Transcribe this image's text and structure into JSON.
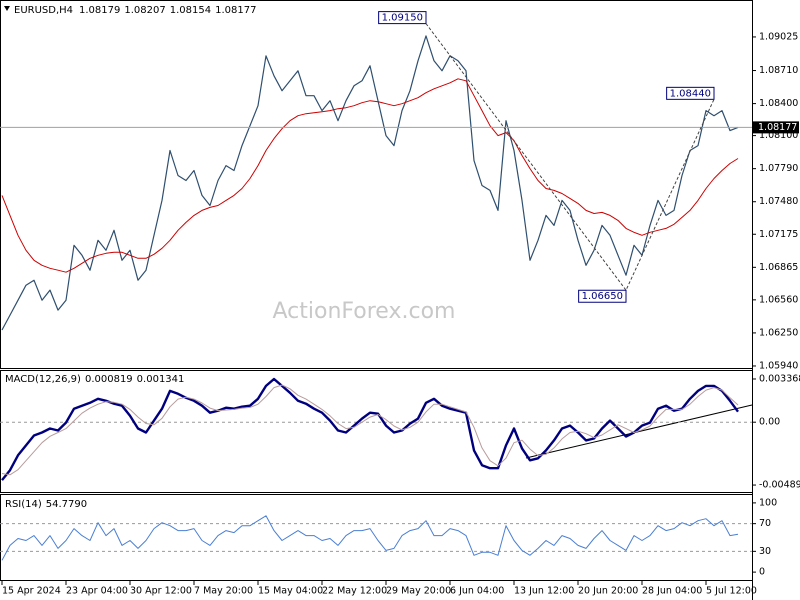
{
  "chart_data": [
    {
      "type": "line",
      "title": "EURUSD,H4",
      "ohlc": [
        1.08179,
        1.08207,
        1.08154,
        1.08177
      ],
      "watermark": "ActionForex.com",
      "ylim": [
        1.05921,
        1.09362
      ],
      "yticks": [
        1.09025,
        {
          "value": 1.0871,
          "label": "1.08710"
        },
        {
          "value": 1.084,
          "label": "1.08400"
        },
        {
          "value": 1.081,
          "label": "1.08100"
        },
        {
          "value": 1.0779,
          "label": "1.07790"
        },
        {
          "value": 1.0748,
          "label": "1.07480"
        },
        1.07175,
        1.06865,
        {
          "value": 1.0656,
          "label": "1.06560"
        },
        {
          "value": 1.0625,
          "label": "1.06250"
        },
        {
          "value": 1.0594,
          "label": "1.05940"
        }
      ],
      "series": [
        {
          "color": "#2f4f6f",
          "width": 1.2,
          "values": [
            1.06277,
            1.06417,
            1.06557,
            1.06697,
            1.06744,
            1.06557,
            1.06651,
            1.06464,
            1.06557,
            1.07071,
            1.06978,
            1.06838,
            1.07118,
            1.07025,
            1.07212,
            1.06931,
            1.07025,
            1.06744,
            1.06838,
            1.07165,
            1.07492,
            1.0796,
            1.07726,
            1.07679,
            1.07773,
            1.07539,
            1.07445,
            1.07679,
            1.07819,
            1.07773,
            1.08006,
            1.08193,
            1.0838,
            1.08848,
            1.08661,
            1.08521,
            1.08614,
            1.08708,
            1.08474,
            1.08474,
            1.08334,
            1.08427,
            1.0824,
            1.08427,
            1.08567,
            1.08614,
            1.08754,
            1.08427,
            1.081,
            1.08006,
            1.08334,
            1.08521,
            1.08801,
            1.09035,
            1.08801,
            1.08708,
            1.08848,
            1.08801,
            1.08708,
            1.07866,
            1.07632,
            1.07586,
            1.07399,
            1.0824,
            1.0796,
            1.07492,
            1.06931,
            1.07118,
            1.07352,
            1.07258,
            1.07492,
            1.07399,
            1.07118,
            1.06884,
            1.07025,
            1.07258,
            1.07165,
            1.06978,
            1.06791,
            1.07071,
            1.06978,
            1.07258,
            1.07492,
            1.07352,
            1.07399,
            1.07726,
            1.0796,
            1.08006,
            1.08334,
            1.08287,
            1.08334,
            1.08147,
            1.08177
          ]
        },
        {
          "color": "#cc0000",
          "width": 1,
          "values": [
            1.07539,
            1.07352,
            1.07165,
            1.07025,
            1.06931,
            1.06884,
            1.06856,
            1.06838,
            1.06819,
            1.06856,
            1.06903,
            1.0695,
            1.06978,
            1.06996,
            1.07006,
            1.07006,
            1.06978,
            1.0695,
            1.0695,
            1.06987,
            1.07043,
            1.07118,
            1.07212,
            1.07286,
            1.07352,
            1.07399,
            1.07427,
            1.07445,
            1.07492,
            1.07539,
            1.07604,
            1.07698,
            1.07819,
            1.0796,
            1.08072,
            1.08165,
            1.0824,
            1.08287,
            1.08305,
            1.08315,
            1.08324,
            1.08334,
            1.08352,
            1.08362,
            1.0838,
            1.08408,
            1.08427,
            1.08418,
            1.08399,
            1.0838,
            1.08399,
            1.08427,
            1.08455,
            1.08502,
            1.08539,
            1.08567,
            1.08595,
            1.08633,
            1.08614,
            1.08474,
            1.08334,
            1.08193,
            1.081,
            1.08128,
            1.08053,
            1.07913,
            1.07791,
            1.07679,
            1.07604,
            1.07586,
            1.07557,
            1.07511,
            1.07464,
            1.07399,
            1.0737,
            1.0738,
            1.07352,
            1.07305,
            1.0723,
            1.07193,
            1.07165,
            1.07193,
            1.07212,
            1.0723,
            1.07268,
            1.07333,
            1.07399,
            1.07492,
            1.07604,
            1.07698,
            1.07773,
            1.07838,
            1.07885
          ]
        }
      ],
      "annotations": [
        {
          "index": 53,
          "value": 1.0915,
          "label": "1.09150"
        },
        {
          "index": 78,
          "value": 1.0665,
          "label": "1.06650"
        },
        {
          "index": 89,
          "value": 1.0844,
          "label": "1.08440"
        }
      ]
    },
    {
      "type": "line",
      "title": "MACD(12,26,9)",
      "readings": [
        0.000819,
        0.001341
      ],
      "ylim": [
        -0.00544,
        0.00399
      ],
      "yticks": [
        0.003368,
        {
          "value": 0,
          "label": "0.00"
        },
        -0.004898
      ],
      "levels": [
        0
      ],
      "series": [
        {
          "color": "#00007f",
          "width": 2.4,
          "values": [
            -0.004514,
            -0.003741,
            -0.002582,
            -0.001809,
            -0.001036,
            -0.000804,
            -0.000495,
            -0.000649,
            -3.1e-05,
            0.001051,
            0.001283,
            0.001515,
            0.001824,
            0.00167,
            0.001438,
            0.001283,
            0.00051,
            -0.000495,
            -0.000804,
            0.000124,
            0.001051,
            0.002443,
            0.002211,
            0.001902,
            0.00167,
            0.001283,
            0.000742,
            0.000897,
            0.001129,
            0.001051,
            0.001206,
            0.001283,
            0.001824,
            0.002829,
            0.00337,
            0.002829,
            0.002288,
            0.00167,
            0.001438,
            0.001051,
            0.000742,
            0.000124,
            -0.000649,
            -0.000804,
            -0.000263,
            0.000278,
            0.000742,
            0.000665,
            -0.000263,
            -0.000804,
            -0.000649,
            -0.000108,
            0.000278,
            0.001515,
            0.001824,
            0.001283,
            0.001051,
            0.000897,
            0.000742,
            -0.002195,
            -0.003355,
            -0.003587,
            -0.003587,
            -0.001809,
            -0.000495,
            -0.002041,
            -0.002968,
            -0.002814,
            -0.002195,
            -0.001422,
            -0.000495,
            -0.000263,
            -0.000804,
            -0.001422,
            -0.001268,
            -0.000495,
            0.000124,
            -0.000495,
            -0.001113,
            -0.000804,
            -0.000263,
            -3.1e-05,
            0.001051,
            0.001283,
            0.000897,
            0.001051,
            0.001824,
            0.002443,
            0.002829,
            0.002829,
            0.002443,
            0.00167,
            0.000819
          ]
        },
        {
          "color": "#b89c9c",
          "width": 1,
          "values": [
            -0.004,
            -0.0041,
            -0.0037,
            -0.003,
            -0.0023,
            -0.0016,
            -0.0011,
            -0.0008,
            -0.0005,
            0.0001,
            0.0007,
            0.0011,
            0.0014,
            0.0016,
            0.00155,
            0.0014,
            0.001,
            0.0004,
            -0.0001,
            -0.0002,
            0.0003,
            0.0012,
            0.0018,
            0.00195,
            0.0018,
            0.0015,
            0.0011,
            0.0009,
            0.00095,
            0.001,
            0.0011,
            0.00115,
            0.0014,
            0.002,
            0.0027,
            0.0029,
            0.0026,
            0.0021,
            0.0018,
            0.0014,
            0.001,
            0.0005,
            -0.0001,
            -0.0005,
            -0.0004,
            0,
            0.0004,
            0.0006,
            0.0002,
            -0.0003,
            -0.0006,
            -0.0004,
            0,
            0.0008,
            0.0014,
            0.0014,
            0.0012,
            0.001,
            0.0008,
            -0.0004,
            -0.002,
            -0.003,
            -0.0034,
            -0.0028,
            -0.0016,
            -0.0014,
            -0.0021,
            -0.0026,
            -0.0025,
            -0.002,
            -0.0013,
            -0.0008,
            -0.0007,
            -0.0009,
            -0.0012,
            -0.001,
            -0.0006,
            -0.0002,
            -0.0005,
            -0.0008,
            -0.0006,
            -0.0003,
            0.0004,
            0.001,
            0.001,
            0.001,
            0.0014,
            0.002,
            0.0025,
            0.0027,
            0.0025,
            0.0019,
            0.001341
          ]
        }
      ]
    },
    {
      "type": "line",
      "title": "RSI(14)",
      "reading": {
        "value": 54.779,
        "label": "54.7790"
      },
      "ylim": [
        -11.4,
        111.4
      ],
      "yticks": [
        100,
        70,
        30,
        0
      ],
      "levels": [
        70,
        30
      ],
      "series": [
        {
          "color": "#4a7fd4",
          "width": 1,
          "values": [
            17.1,
            38.6,
            48.6,
            45.7,
            52.8,
            38.6,
            52.8,
            34.3,
            45.7,
            62.8,
            52.8,
            45.7,
            71.4,
            52.8,
            62.8,
            38.6,
            45.7,
            34.3,
            45.7,
            62.8,
            71.4,
            67.1,
            60,
            60,
            62.8,
            45.7,
            38.6,
            52.8,
            60,
            57.1,
            67.1,
            67.1,
            74.3,
            81.4,
            60,
            45.7,
            52.8,
            60,
            52.8,
            52.8,
            45.7,
            48.6,
            38.6,
            52.8,
            60,
            60,
            62.8,
            45.7,
            31.4,
            34.3,
            52.8,
            60,
            62.8,
            74.3,
            52.8,
            52.8,
            62.8,
            60,
            52.8,
            24.3,
            28.6,
            28.6,
            24.3,
            67.1,
            45.7,
            31.4,
            24.3,
            34.3,
            45.7,
            38.6,
            52.8,
            48.6,
            38.6,
            34.3,
            48.6,
            60,
            45.7,
            38.6,
            31.4,
            52.8,
            45.7,
            52.8,
            67.1,
            60,
            62.8,
            71.4,
            67.1,
            74.3,
            77.1,
            67.1,
            74.3,
            52.8,
            54.779
          ]
        }
      ],
      "categories": [
        "15 Apr 2024",
        null,
        null,
        null,
        null,
        null,
        null,
        null,
        "23 Apr 04:00",
        null,
        null,
        null,
        null,
        null,
        null,
        null,
        "30 Apr 12:00",
        null,
        null,
        null,
        null,
        null,
        null,
        null,
        "7 May 20:00",
        null,
        null,
        null,
        null,
        null,
        null,
        null,
        "15 May 04:00",
        null,
        null,
        null,
        null,
        null,
        null,
        null,
        "22 May 12:00",
        null,
        null,
        null,
        null,
        null,
        null,
        null,
        "29 May 20:00",
        null,
        null,
        null,
        null,
        null,
        null,
        null,
        "6 Jun 04:00",
        null,
        null,
        null,
        null,
        null,
        null,
        null,
        "13 Jun 12:00",
        null,
        null,
        null,
        null,
        null,
        null,
        null,
        "20 Jun 20:00",
        null,
        null,
        null,
        null,
        null,
        null,
        null,
        "28 Jun 04:00",
        null,
        null,
        null,
        null,
        null,
        null,
        null,
        "5 Jul 12:00",
        null,
        null,
        null,
        null
      ]
    }
  ]
}
